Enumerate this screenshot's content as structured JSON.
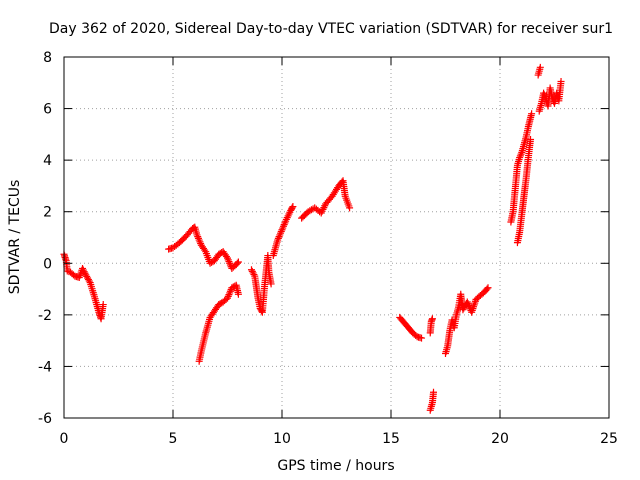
{
  "chart_data": {
    "type": "scatter",
    "title": "Day 362 of 2020, Sidereal Day-to-day VTEC variation (SDTVAR) for receiver sur1",
    "xlabel": "GPS time / hours",
    "ylabel": "SDTVAR / TECUs",
    "xlim": [
      0,
      25
    ],
    "ylim": [
      -6,
      8
    ],
    "xticks": [
      0,
      5,
      10,
      15,
      20,
      25
    ],
    "yticks": [
      -6,
      -4,
      -2,
      0,
      2,
      4,
      6,
      8
    ],
    "grid": true,
    "marker": "plus",
    "color": "#ff0000",
    "segments": [
      [
        [
          0.0,
          0.35
        ],
        [
          0.1,
          0.1
        ],
        [
          0.15,
          -0.3
        ],
        [
          0.3,
          -0.35
        ],
        [
          0.5,
          -0.5
        ],
        [
          0.7,
          -0.55
        ],
        [
          0.85,
          -0.2
        ],
        [
          1.0,
          -0.45
        ],
        [
          1.2,
          -0.75
        ],
        [
          1.4,
          -1.3
        ],
        [
          1.6,
          -1.9
        ],
        [
          1.7,
          -2.15
        ],
        [
          1.8,
          -1.6
        ]
      ],
      [
        [
          4.8,
          0.55
        ],
        [
          5.0,
          0.6
        ],
        [
          5.3,
          0.8
        ],
        [
          5.6,
          1.05
        ],
        [
          5.9,
          1.35
        ],
        [
          6.0,
          1.4
        ],
        [
          6.1,
          1.1
        ],
        [
          6.3,
          0.7
        ],
        [
          6.5,
          0.45
        ],
        [
          6.7,
          0.0
        ],
        [
          6.9,
          0.1
        ],
        [
          7.1,
          0.35
        ],
        [
          7.3,
          0.45
        ],
        [
          7.5,
          0.2
        ],
        [
          7.7,
          -0.2
        ],
        [
          7.9,
          -0.05
        ],
        [
          8.0,
          0.05
        ]
      ],
      [
        [
          6.2,
          -3.8
        ],
        [
          6.3,
          -3.4
        ],
        [
          6.5,
          -2.7
        ],
        [
          6.7,
          -2.1
        ],
        [
          6.9,
          -1.85
        ],
        [
          7.1,
          -1.6
        ],
        [
          7.3,
          -1.5
        ],
        [
          7.5,
          -1.35
        ],
        [
          7.7,
          -0.95
        ],
        [
          7.9,
          -0.85
        ],
        [
          8.0,
          -1.2
        ]
      ],
      [
        [
          8.6,
          -0.25
        ],
        [
          8.75,
          -0.5
        ],
        [
          8.9,
          -1.35
        ],
        [
          9.0,
          -1.75
        ],
        [
          9.1,
          -1.9
        ],
        [
          9.2,
          -0.9
        ],
        [
          9.35,
          0.3
        ],
        [
          9.4,
          -0.35
        ],
        [
          9.5,
          -0.8
        ]
      ],
      [
        [
          9.6,
          0.3
        ],
        [
          9.8,
          0.9
        ],
        [
          10.0,
          1.3
        ],
        [
          10.2,
          1.7
        ],
        [
          10.4,
          2.05
        ],
        [
          10.5,
          2.2
        ]
      ],
      [
        [
          10.9,
          1.75
        ],
        [
          11.2,
          2.0
        ],
        [
          11.5,
          2.15
        ],
        [
          11.8,
          1.95
        ],
        [
          12.0,
          2.3
        ],
        [
          12.3,
          2.6
        ],
        [
          12.6,
          3.0
        ],
        [
          12.8,
          3.2
        ],
        [
          12.9,
          2.6
        ],
        [
          13.1,
          2.15
        ]
      ],
      [
        [
          15.4,
          -2.1
        ],
        [
          15.6,
          -2.3
        ],
        [
          15.8,
          -2.5
        ],
        [
          16.0,
          -2.7
        ],
        [
          16.2,
          -2.85
        ],
        [
          16.4,
          -2.9
        ]
      ],
      [
        [
          16.8,
          -2.7
        ],
        [
          16.85,
          -2.25
        ],
        [
          16.9,
          -2.15
        ]
      ],
      [
        [
          16.8,
          -5.7
        ],
        [
          16.9,
          -5.4
        ],
        [
          16.95,
          -5.0
        ]
      ],
      [
        [
          17.5,
          -3.5
        ],
        [
          17.6,
          -3.2
        ],
        [
          17.7,
          -2.6
        ],
        [
          17.8,
          -2.2
        ],
        [
          17.9,
          -2.5
        ],
        [
          18.0,
          -2.0
        ],
        [
          18.1,
          -1.7
        ],
        [
          18.2,
          -1.2
        ],
        [
          18.3,
          -1.8
        ],
        [
          18.5,
          -1.5
        ],
        [
          18.7,
          -1.9
        ],
        [
          18.9,
          -1.4
        ],
        [
          19.1,
          -1.25
        ],
        [
          19.3,
          -1.1
        ],
        [
          19.45,
          -0.95
        ]
      ],
      [
        [
          20.5,
          1.6
        ],
        [
          20.6,
          2.0
        ],
        [
          20.8,
          3.8
        ],
        [
          20.9,
          4.1
        ],
        [
          21.0,
          4.3
        ],
        [
          21.2,
          4.9
        ],
        [
          21.3,
          5.3
        ],
        [
          21.45,
          5.8
        ]
      ],
      [
        [
          20.8,
          0.8
        ],
        [
          20.9,
          1.2
        ],
        [
          21.0,
          1.9
        ],
        [
          21.1,
          2.6
        ],
        [
          21.2,
          3.3
        ],
        [
          21.3,
          4.1
        ],
        [
          21.4,
          4.8
        ]
      ],
      [
        [
          21.8,
          5.9
        ],
        [
          21.9,
          6.2
        ],
        [
          22.0,
          6.6
        ],
        [
          22.1,
          6.4
        ],
        [
          22.2,
          6.1
        ],
        [
          22.3,
          6.8
        ],
        [
          22.4,
          6.4
        ],
        [
          22.5,
          6.2
        ],
        [
          22.6,
          6.6
        ],
        [
          22.7,
          6.3
        ],
        [
          22.8,
          7.05
        ]
      ],
      [
        [
          21.75,
          7.3
        ],
        [
          21.85,
          7.6
        ]
      ]
    ]
  }
}
